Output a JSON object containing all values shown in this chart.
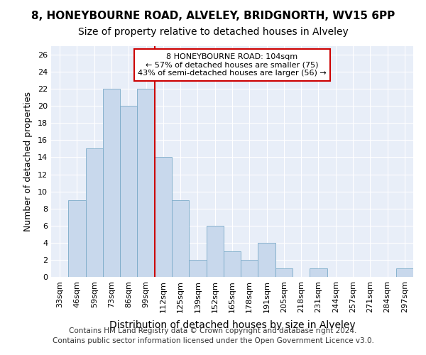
{
  "title": "8, HONEYBOURNE ROAD, ALVELEY, BRIDGNORTH, WV15 6PP",
  "subtitle": "Size of property relative to detached houses in Alveley",
  "xlabel": "Distribution of detached houses by size in Alveley",
  "ylabel": "Number of detached properties",
  "categories": [
    "33sqm",
    "46sqm",
    "59sqm",
    "73sqm",
    "86sqm",
    "99sqm",
    "112sqm",
    "125sqm",
    "139sqm",
    "152sqm",
    "165sqm",
    "178sqm",
    "191sqm",
    "205sqm",
    "218sqm",
    "231sqm",
    "244sqm",
    "257sqm",
    "271sqm",
    "284sqm",
    "297sqm"
  ],
  "values": [
    0,
    9,
    15,
    22,
    20,
    22,
    14,
    9,
    2,
    6,
    3,
    2,
    4,
    1,
    0,
    1,
    0,
    0,
    0,
    0,
    1
  ],
  "bar_color": "#c8d8ec",
  "bar_edge_color": "#7aaac8",
  "property_line_x": 5.5,
  "annotation_line1": "8 HONEYBOURNE ROAD: 104sqm",
  "annotation_line2": "← 57% of detached houses are smaller (75)",
  "annotation_line3": "43% of semi-detached houses are larger (56) →",
  "vline_color": "#cc0000",
  "annotation_box_edge": "#cc0000",
  "ylim": [
    0,
    27
  ],
  "yticks": [
    0,
    2,
    4,
    6,
    8,
    10,
    12,
    14,
    16,
    18,
    20,
    22,
    24,
    26
  ],
  "background_color": "#e8eef8",
  "grid_color": "#ffffff",
  "title_fontsize": 11,
  "subtitle_fontsize": 10,
  "ylabel_fontsize": 9,
  "xlabel_fontsize": 10,
  "footer_text": "Contains HM Land Registry data © Crown copyright and database right 2024.\nContains public sector information licensed under the Open Government Licence v3.0.",
  "footer_fontsize": 7.5
}
